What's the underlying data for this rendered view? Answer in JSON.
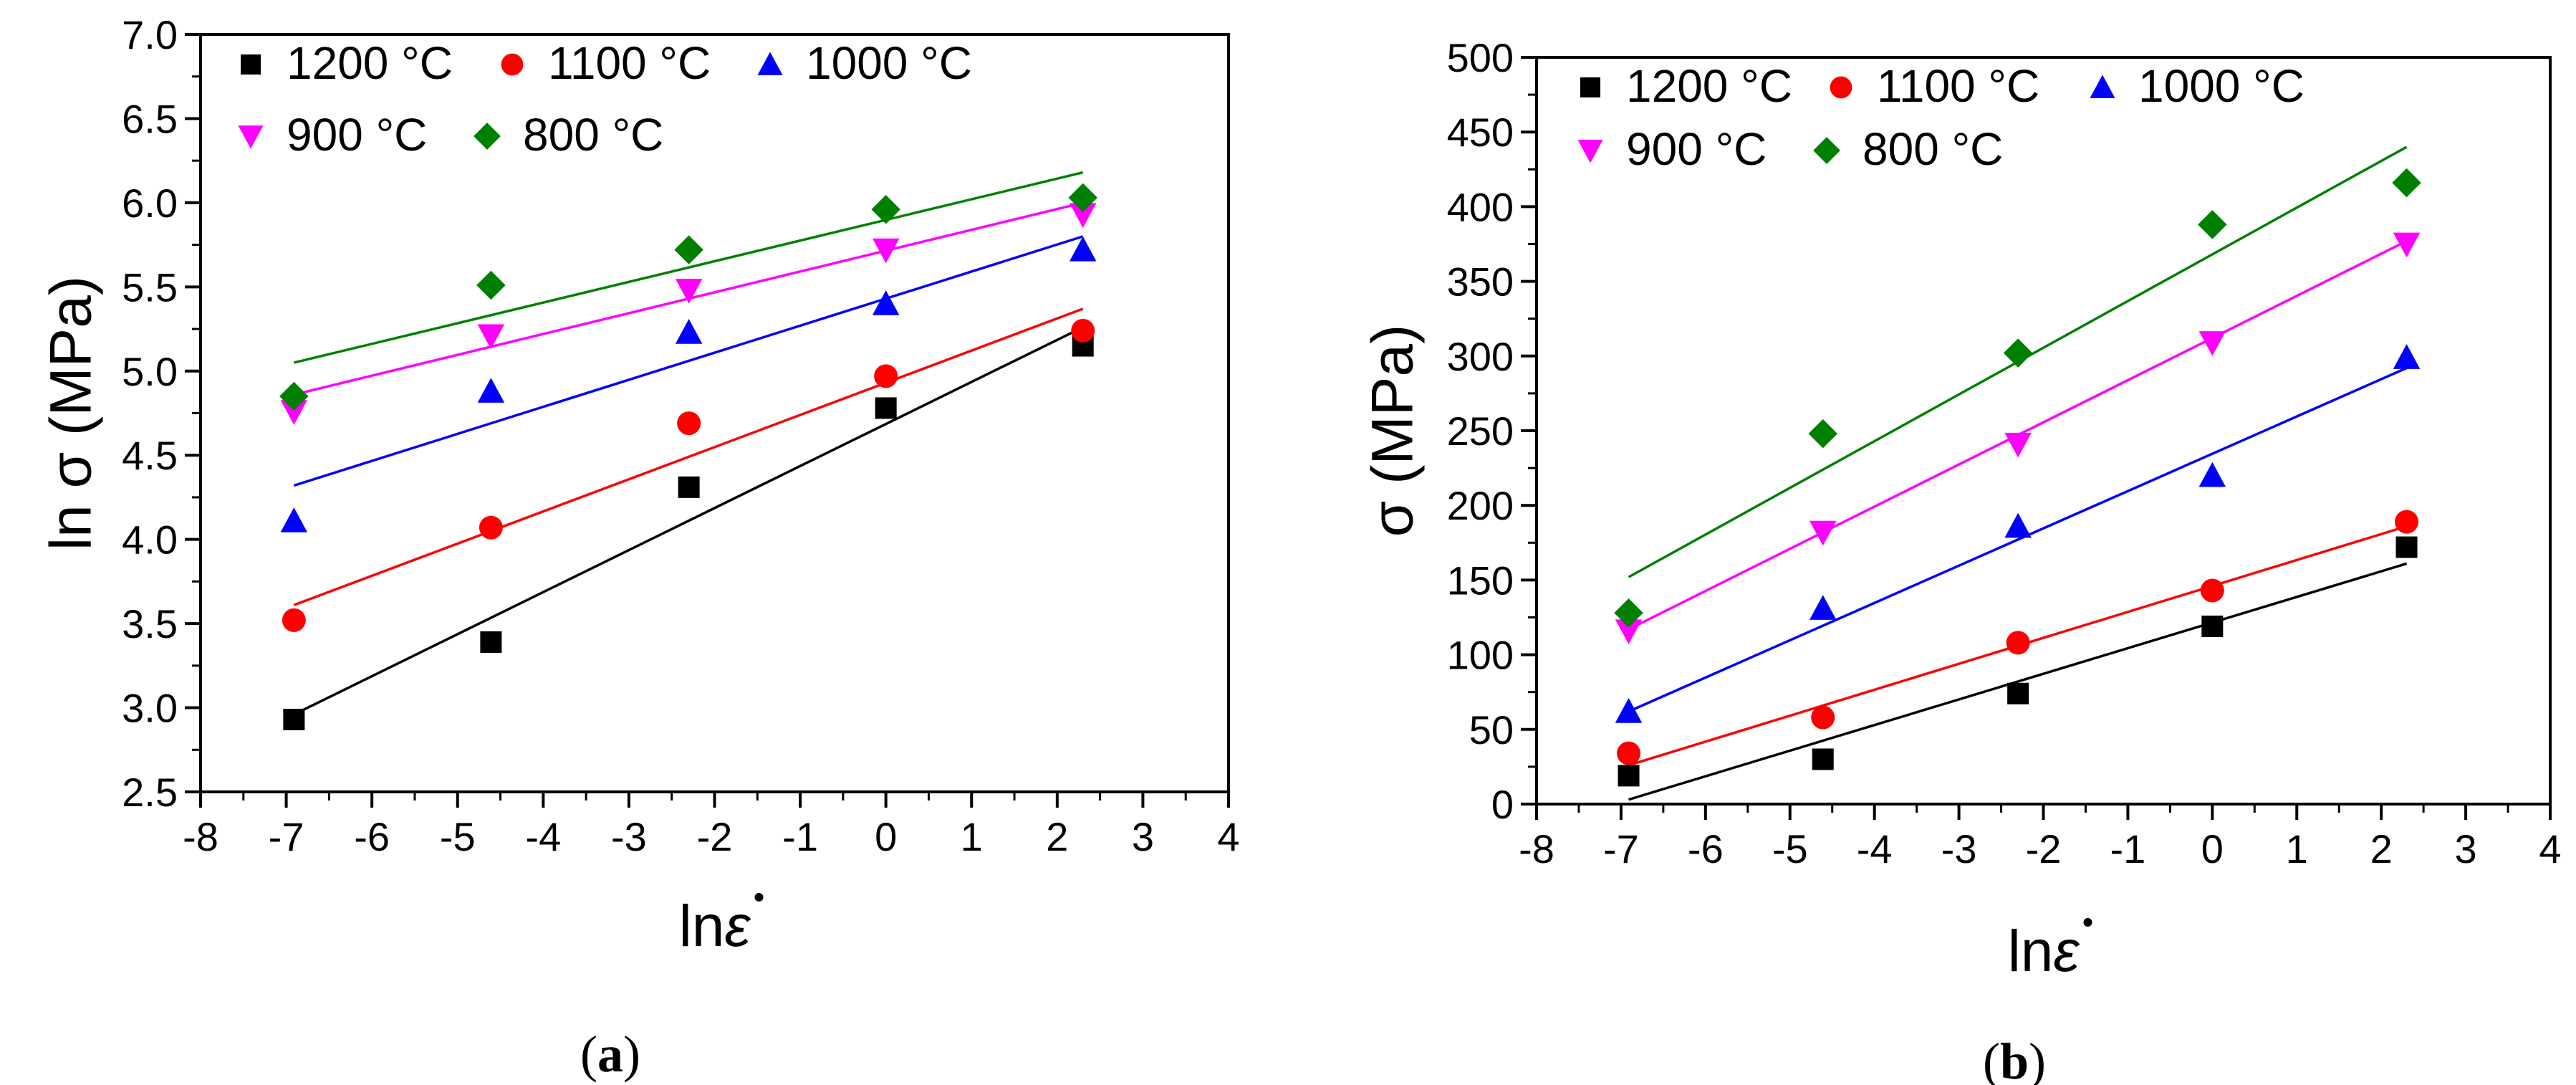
{
  "chart_data": [
    {
      "type": "scatter",
      "panel": "a",
      "caption_open": "(",
      "caption_letter": "a",
      "caption_close": ")",
      "xlabel_prefix": "ln",
      "xlabel_var": "ε",
      "ylabel": "ln σ (MPa)",
      "xlim": [
        -8,
        4
      ],
      "ylim": [
        2.5,
        7.0
      ],
      "x_ticks": [
        -8,
        -7,
        -6,
        -5,
        -4,
        -3,
        -2,
        -1,
        0,
        1,
        2,
        3,
        4
      ],
      "x_tick_labels": [
        "-8",
        "-7",
        "-6",
        "-5",
        "-4",
        "-3",
        "-2",
        "-1",
        "0",
        "1",
        "2",
        "3",
        "4"
      ],
      "y_ticks": [
        2.5,
        3.0,
        3.5,
        4.0,
        4.5,
        5.0,
        5.5,
        6.0,
        6.5,
        7.0
      ],
      "y_tick_labels": [
        "2.5",
        "3.0",
        "3.5",
        "4.0",
        "4.5",
        "5.0",
        "5.5",
        "6.0",
        "6.5",
        "7.0"
      ],
      "x": [
        -6.91,
        -4.61,
        -2.3,
        0,
        2.3
      ],
      "series": [
        {
          "name": "1200 °C",
          "color": "#000000",
          "marker": "square",
          "values": [
            2.93,
            3.39,
            4.31,
            4.78,
            5.15
          ],
          "fit": [
            [
              -6.91,
              2.96
            ],
            [
              2.3,
              5.26
            ]
          ]
        },
        {
          "name": "1100 °C",
          "color": "#ff0000",
          "marker": "circle",
          "values": [
            3.52,
            4.07,
            4.69,
            4.97,
            5.24
          ],
          "fit": [
            [
              -6.91,
              3.61
            ],
            [
              2.3,
              5.37
            ]
          ]
        },
        {
          "name": "1000 °C",
          "color": "#0000ff",
          "marker": "triangle-up",
          "values": [
            4.11,
            4.88,
            5.23,
            5.4,
            5.72
          ],
          "fit": [
            [
              -6.91,
              4.32
            ],
            [
              2.3,
              5.8
            ]
          ]
        },
        {
          "name": "900 °C",
          "color": "#ff00ff",
          "marker": "triangle-down",
          "values": [
            4.76,
            5.21,
            5.48,
            5.72,
            5.93
          ],
          "fit": [
            [
              -6.91,
              4.86
            ],
            [
              2.3,
              6.0
            ]
          ]
        },
        {
          "name": "800 °C",
          "color": "#008000",
          "marker": "diamond",
          "values": [
            4.85,
            5.51,
            5.72,
            5.96,
            6.03
          ],
          "fit": [
            [
              -6.91,
              5.05
            ],
            [
              2.3,
              6.18
            ]
          ]
        }
      ]
    },
    {
      "type": "scatter",
      "panel": "b",
      "caption_open": "(",
      "caption_letter": "b",
      "caption_close": ")",
      "xlabel_prefix": "ln",
      "xlabel_var": "ε",
      "ylabel": "σ (MPa)",
      "xlim": [
        -8,
        4
      ],
      "ylim": [
        0,
        500
      ],
      "x_ticks": [
        -8,
        -7,
        -6,
        -5,
        -4,
        -3,
        -2,
        -1,
        0,
        1,
        2,
        3,
        4
      ],
      "x_tick_labels": [
        "-8",
        "-7",
        "-6",
        "-5",
        "-4",
        "-3",
        "-2",
        "-1",
        "0",
        "1",
        "2",
        "3",
        "4"
      ],
      "y_ticks": [
        0,
        50,
        100,
        150,
        200,
        250,
        300,
        350,
        400,
        450,
        500
      ],
      "y_tick_labels": [
        "0",
        "50",
        "100",
        "150",
        "200",
        "250",
        "300",
        "350",
        "400",
        "450",
        "500"
      ],
      "x": [
        -6.91,
        -4.61,
        -2.3,
        0,
        2.3
      ],
      "series": [
        {
          "name": "1200 °C",
          "color": "#000000",
          "marker": "square",
          "values": [
            19,
            30,
            74,
            119,
            172
          ],
          "fit": [
            [
              -6.91,
              3
            ],
            [
              2.3,
              161
            ]
          ]
        },
        {
          "name": "1100 °C",
          "color": "#ff0000",
          "marker": "circle",
          "values": [
            34,
            58,
            108,
            143,
            189
          ],
          "fit": [
            [
              -6.91,
              26
            ],
            [
              2.3,
              186
            ]
          ]
        },
        {
          "name": "1000 °C",
          "color": "#0000ff",
          "marker": "triangle-up",
          "values": [
            62,
            131,
            186,
            220,
            299
          ],
          "fit": [
            [
              -6.91,
              62
            ],
            [
              2.3,
              292
            ]
          ]
        },
        {
          "name": "900 °C",
          "color": "#ff00ff",
          "marker": "triangle-down",
          "values": [
            116,
            182,
            241,
            309,
            375
          ],
          "fit": [
            [
              -6.91,
              117
            ],
            [
              2.3,
              377
            ]
          ]
        },
        {
          "name": "800 °C",
          "color": "#008000",
          "marker": "diamond",
          "values": [
            128,
            248,
            302,
            388,
            416
          ],
          "fit": [
            [
              -6.91,
              152
            ],
            [
              2.3,
              440
            ]
          ]
        }
      ]
    }
  ]
}
